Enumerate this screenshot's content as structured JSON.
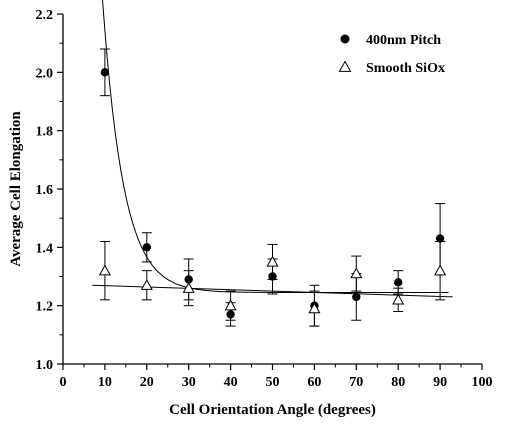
{
  "chart_data": {
    "type": "scatter",
    "title": "",
    "xlabel": "Cell Orientation Angle (degrees)",
    "ylabel": "Average Cell Elongation",
    "xlim": [
      0,
      100
    ],
    "ylim": [
      1.0,
      2.2
    ],
    "xticks": [
      "0",
      "10",
      "20",
      "30",
      "40",
      "50",
      "60",
      "70",
      "80",
      "90",
      "100"
    ],
    "yticks": [
      "1.0",
      "1.2",
      "1.4",
      "1.6",
      "1.8",
      "2.0",
      "2.2"
    ],
    "grid": false,
    "legend_position": "top-right",
    "series": [
      {
        "name": "400nm Pitch",
        "marker": "filled-circle",
        "color": "#000000",
        "points": [
          {
            "x": 10,
            "y": 2.0,
            "err": 0.08
          },
          {
            "x": 20,
            "y": 1.4,
            "err": 0.05
          },
          {
            "x": 30,
            "y": 1.29,
            "err": 0.07
          },
          {
            "x": 40,
            "y": 1.17,
            "err": 0.04
          },
          {
            "x": 50,
            "y": 1.3,
            "err": 0.06
          },
          {
            "x": 60,
            "y": 1.2,
            "err": 0.07
          },
          {
            "x": 70,
            "y": 1.23,
            "err": 0.08
          },
          {
            "x": 80,
            "y": 1.28,
            "err": 0.04
          },
          {
            "x": 90,
            "y": 1.43,
            "err": 0.12
          }
        ],
        "fit": {
          "type": "exponential-decay",
          "x_range": [
            9,
            92
          ],
          "y0": 1.245,
          "a": 1.57,
          "k": 0.2,
          "x_offset": 7.2
        }
      },
      {
        "name": "Smooth SiOx",
        "marker": "open-triangle",
        "color": "#000000",
        "points": [
          {
            "x": 10,
            "y": 1.32,
            "err": 0.1
          },
          {
            "x": 20,
            "y": 1.27,
            "err": 0.05
          },
          {
            "x": 30,
            "y": 1.26,
            "err": 0.06
          },
          {
            "x": 40,
            "y": 1.2,
            "err": 0.05
          },
          {
            "x": 50,
            "y": 1.35,
            "err": 0.06
          },
          {
            "x": 60,
            "y": 1.19,
            "err": 0.06
          },
          {
            "x": 70,
            "y": 1.31,
            "err": 0.06
          },
          {
            "x": 80,
            "y": 1.22,
            "err": 0.04
          },
          {
            "x": 90,
            "y": 1.32,
            "err": 0.1
          }
        ],
        "fit": {
          "type": "linear",
          "x_range": [
            7,
            93
          ],
          "y_start": 1.27,
          "y_end": 1.23
        }
      }
    ]
  }
}
